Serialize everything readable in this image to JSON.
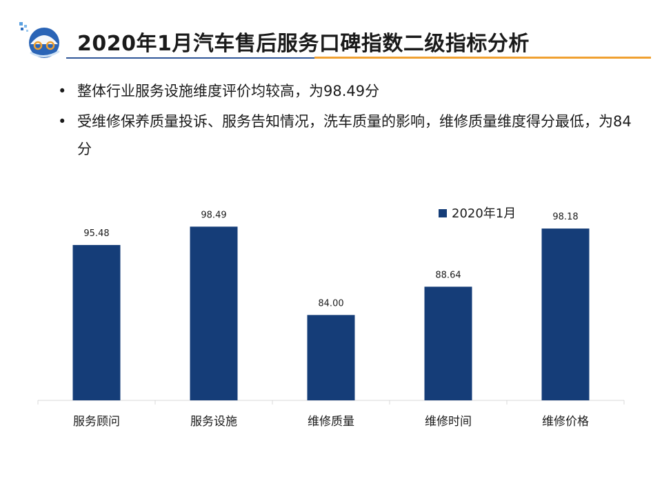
{
  "title": "2020年1月汽车售后服务口碑指数二级指标分析",
  "bullets": [
    "整体行业服务设施维度评价均较高，为98.49分",
    "受维修保养质量投诉、服务告知情况，洗车质量的影响，维修质量维度得分最低，为84分"
  ],
  "colors": {
    "bar": "#153d78",
    "title_rule_blue": "#2e5597",
    "title_rule_orange": "#f0a030"
  },
  "chart_data": {
    "type": "bar",
    "categories": [
      "服务顾问",
      "服务设施",
      "维修质量",
      "维修时间",
      "维修价格"
    ],
    "series": [
      {
        "name": "2020年1月",
        "values": [
          95.48,
          98.49,
          84.0,
          88.64,
          98.18
        ]
      }
    ],
    "data_labels": [
      "95.48",
      "98.49",
      "84.00",
      "88.64",
      "98.18"
    ],
    "legend_position": "top-right",
    "grid": false,
    "ylim": [
      70,
      100
    ]
  }
}
